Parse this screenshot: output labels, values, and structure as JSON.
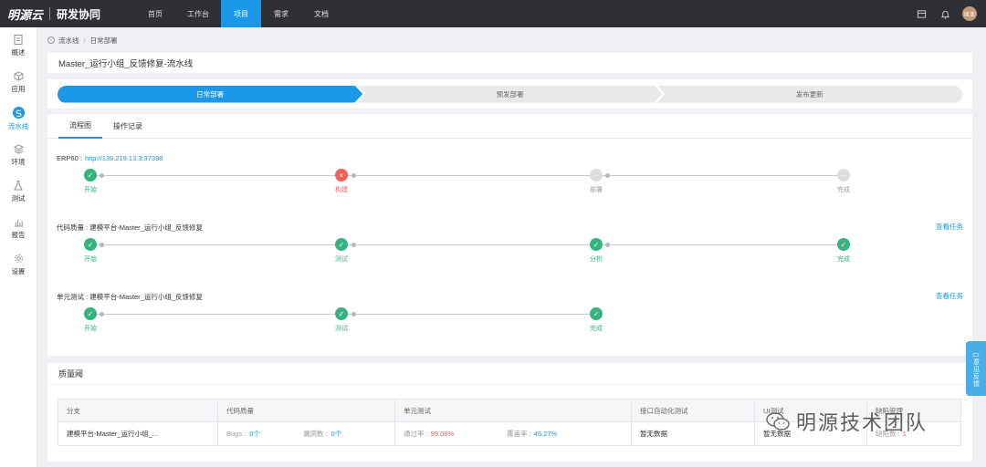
{
  "topbar": {
    "brand": "明源云",
    "product": "研发协同",
    "nav": [
      {
        "label": "首页"
      },
      {
        "label": "工作台"
      },
      {
        "label": "项目"
      },
      {
        "label": "需求"
      },
      {
        "label": "文档"
      }
    ],
    "active_nav": "项目",
    "avatar": "匡亚"
  },
  "sidebar": {
    "items": [
      {
        "label": "概述",
        "icon": "document-icon"
      },
      {
        "label": "应用",
        "icon": "cube-icon"
      },
      {
        "label": "流水线",
        "icon": "pipeline-icon"
      },
      {
        "label": "环境",
        "icon": "layers-icon"
      },
      {
        "label": "测试",
        "icon": "flask-icon"
      },
      {
        "label": "报告",
        "icon": "bar-chart-icon"
      },
      {
        "label": "设置",
        "icon": "gear-icon"
      }
    ],
    "active": "流水线"
  },
  "breadcrumb": {
    "items": [
      "流水线",
      "日常部署"
    ]
  },
  "page_title": "Master_运行小组_反馈修复-流水线",
  "stages": [
    "日常部署",
    "预发部署",
    "发布更新"
  ],
  "tabs": [
    "流程图",
    "操作记录"
  ],
  "pipelines": [
    {
      "title": "ERP60 :",
      "link": "http://139.219.13.3:37398",
      "action": "",
      "nodes": [
        {
          "label": "开始",
          "status": "ok"
        },
        {
          "label": "构建",
          "status": "fail"
        },
        {
          "label": "部署",
          "status": "pending"
        },
        {
          "label": "完成",
          "status": "pending"
        }
      ]
    },
    {
      "title": "代码质量 : 建模平台-Master_运行小组_反馈修复",
      "link": "",
      "action": "查看任务",
      "nodes": [
        {
          "label": "开始",
          "status": "ok"
        },
        {
          "label": "测试",
          "status": "ok"
        },
        {
          "label": "分析",
          "status": "ok"
        },
        {
          "label": "完成",
          "status": "ok"
        }
      ]
    },
    {
      "title": "单元测试 : 建模平台-Master_运行小组_反馈修复",
      "link": "",
      "action": "查看任务",
      "nodes": [
        {
          "label": "开始",
          "status": "ok"
        },
        {
          "label": "测试",
          "status": "ok"
        },
        {
          "label": "完成",
          "status": "ok"
        }
      ]
    }
  ],
  "quality": {
    "title": "质量阈",
    "headers": [
      "分支",
      "代码质量",
      "单元测试",
      "接口自动化测试",
      "UI测试",
      "缺陷管理"
    ],
    "row": {
      "branch": "建模平台-Master_运行小组_...",
      "bugs_label": "Bugs :",
      "bugs": "0个",
      "vuln_label": "漏洞数 :",
      "vuln": "0个",
      "pass_label": "通过率 :",
      "pass": "99.08%",
      "cover_label": "覆盖率 :",
      "cover": "46.27%",
      "api": "暂无数据",
      "ui": "暂无数据",
      "defect_label": "缺陷数 :",
      "defect": "1"
    }
  },
  "feedback": "意见反馈",
  "watermark": "明源技术团队"
}
